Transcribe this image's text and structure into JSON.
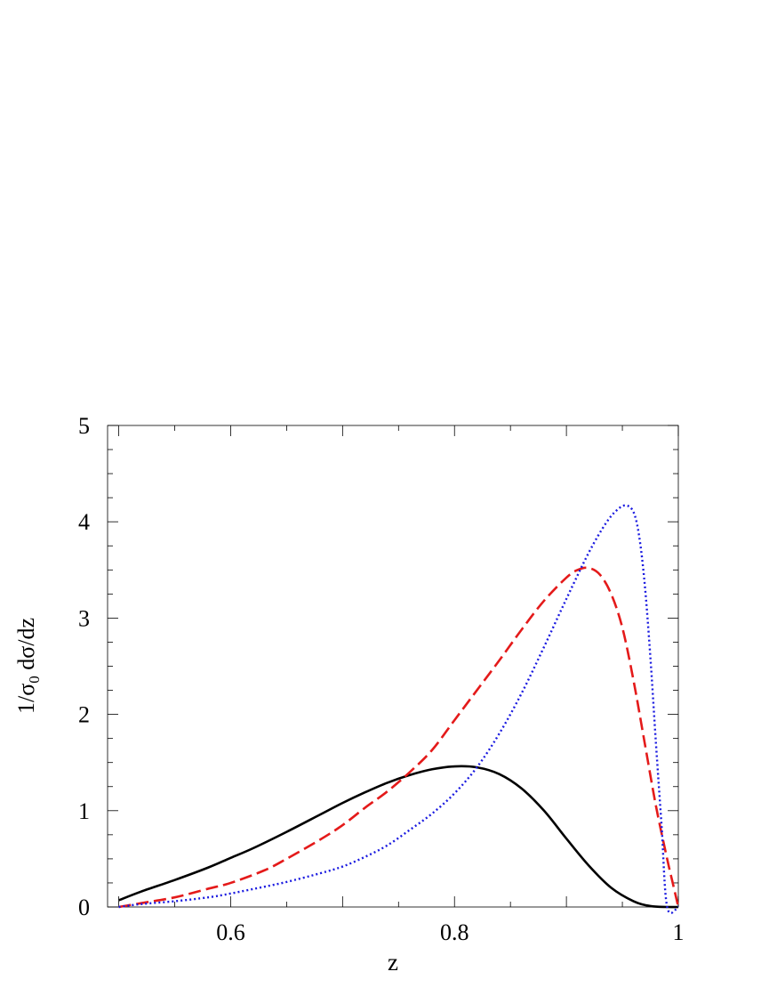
{
  "chart_data": {
    "type": "line",
    "title": "",
    "xlabel": "z",
    "ylabel_main": "1/σ",
    "ylabel_sub": "0",
    "ylabel_rest": " dσ/dz",
    "xlim": [
      0.49,
      1.0
    ],
    "ylim": [
      0,
      5
    ],
    "x_ticks": [
      0.6,
      0.8,
      1.0
    ],
    "x_tick_labels": [
      "0.6",
      "0.8",
      "1"
    ],
    "y_ticks": [
      0,
      1,
      2,
      3,
      4,
      5
    ],
    "y_tick_labels": [
      "0",
      "1",
      "2",
      "3",
      "4",
      "5"
    ],
    "grid": false,
    "legend": "none",
    "series": [
      {
        "color": "#000000",
        "style": "solid",
        "points": [
          [
            0.5,
            0.07
          ],
          [
            0.52,
            0.16
          ],
          [
            0.55,
            0.28
          ],
          [
            0.58,
            0.41
          ],
          [
            0.6,
            0.51
          ],
          [
            0.62,
            0.61
          ],
          [
            0.65,
            0.78
          ],
          [
            0.68,
            0.96
          ],
          [
            0.7,
            1.08
          ],
          [
            0.72,
            1.19
          ],
          [
            0.74,
            1.29
          ],
          [
            0.76,
            1.37
          ],
          [
            0.78,
            1.43
          ],
          [
            0.8,
            1.46
          ],
          [
            0.82,
            1.45
          ],
          [
            0.84,
            1.38
          ],
          [
            0.86,
            1.23
          ],
          [
            0.88,
            1.0
          ],
          [
            0.9,
            0.71
          ],
          [
            0.92,
            0.43
          ],
          [
            0.94,
            0.2
          ],
          [
            0.96,
            0.06
          ],
          [
            0.975,
            0.01
          ],
          [
            0.99,
            0.0
          ],
          [
            1.0,
            0.0
          ]
        ]
      },
      {
        "color": "#e41a1a",
        "style": "dashed",
        "points": [
          [
            0.5,
            0.0
          ],
          [
            0.52,
            0.04
          ],
          [
            0.55,
            0.1
          ],
          [
            0.58,
            0.19
          ],
          [
            0.6,
            0.25
          ],
          [
            0.63,
            0.38
          ],
          [
            0.65,
            0.5
          ],
          [
            0.68,
            0.7
          ],
          [
            0.7,
            0.85
          ],
          [
            0.72,
            1.03
          ],
          [
            0.74,
            1.2
          ],
          [
            0.76,
            1.4
          ],
          [
            0.78,
            1.63
          ],
          [
            0.8,
            1.94
          ],
          [
            0.82,
            2.25
          ],
          [
            0.84,
            2.56
          ],
          [
            0.86,
            2.88
          ],
          [
            0.88,
            3.18
          ],
          [
            0.9,
            3.42
          ],
          [
            0.91,
            3.5
          ],
          [
            0.92,
            3.52
          ],
          [
            0.93,
            3.45
          ],
          [
            0.94,
            3.25
          ],
          [
            0.95,
            2.9
          ],
          [
            0.96,
            2.35
          ],
          [
            0.97,
            1.7
          ],
          [
            0.98,
            1.05
          ],
          [
            0.99,
            0.5
          ],
          [
            0.995,
            0.25
          ],
          [
            1.0,
            0.0
          ]
        ]
      },
      {
        "color": "#1a1ae0",
        "style": "dotted",
        "points": [
          [
            0.5,
            0.0
          ],
          [
            0.52,
            0.03
          ],
          [
            0.55,
            0.06
          ],
          [
            0.58,
            0.1
          ],
          [
            0.6,
            0.14
          ],
          [
            0.63,
            0.21
          ],
          [
            0.65,
            0.26
          ],
          [
            0.68,
            0.35
          ],
          [
            0.7,
            0.42
          ],
          [
            0.72,
            0.52
          ],
          [
            0.74,
            0.64
          ],
          [
            0.76,
            0.8
          ],
          [
            0.78,
            0.97
          ],
          [
            0.8,
            1.18
          ],
          [
            0.82,
            1.45
          ],
          [
            0.84,
            1.8
          ],
          [
            0.86,
            2.22
          ],
          [
            0.88,
            2.7
          ],
          [
            0.9,
            3.2
          ],
          [
            0.92,
            3.68
          ],
          [
            0.935,
            3.98
          ],
          [
            0.945,
            4.12
          ],
          [
            0.953,
            4.17
          ],
          [
            0.96,
            4.1
          ],
          [
            0.965,
            3.85
          ],
          [
            0.97,
            3.35
          ],
          [
            0.975,
            2.6
          ],
          [
            0.98,
            1.7
          ],
          [
            0.985,
            0.85
          ],
          [
            0.99,
            0.0
          ],
          [
            1.0,
            0.0
          ]
        ]
      }
    ]
  }
}
